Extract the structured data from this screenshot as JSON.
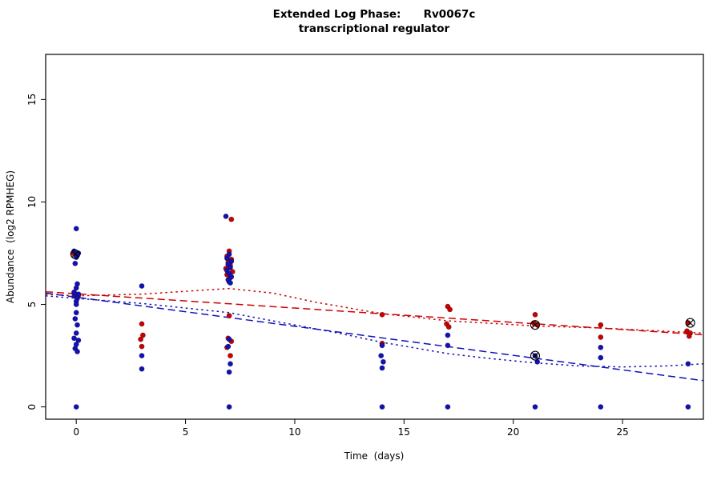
{
  "title": {
    "line1": "Extended Log Phase:      Rv0067c",
    "line2": "transcriptional regulator"
  },
  "axes": {
    "xlabel": "Time  (days)",
    "ylabel": "Abundance  (log2 RPMHEG)"
  },
  "chart_data": {
    "type": "scatter",
    "title": "Extended Log Phase: Rv0067c",
    "subtitle": "transcriptional regulator",
    "xlabel": "Time (days)",
    "ylabel": "Abundance (log2 RPMHEG)",
    "xlim": [
      -1.4,
      28.7
    ],
    "ylim": [
      -0.6,
      17.2
    ],
    "xticks": [
      0,
      5,
      10,
      15,
      20,
      25
    ],
    "yticks": [
      0,
      5,
      10,
      15
    ],
    "grid": false,
    "legend": "none",
    "colors": {
      "red": "#cc0000",
      "blue": "#1111bb",
      "flag": "#000000"
    },
    "series": [
      {
        "name": "red-points",
        "type": "points",
        "color": "red",
        "points": [
          [
            -0.15,
            7.5
          ],
          [
            0.05,
            7.4
          ],
          [
            -0.1,
            5.55
          ],
          [
            0.1,
            5.45
          ],
          [
            3.0,
            4.05
          ],
          [
            3.05,
            3.5
          ],
          [
            2.95,
            3.3
          ],
          [
            3.0,
            2.95
          ],
          [
            7.1,
            9.15
          ],
          [
            7.0,
            7.6
          ],
          [
            6.9,
            7.35
          ],
          [
            7.1,
            7.2
          ],
          [
            6.95,
            7.05
          ],
          [
            7.05,
            6.9
          ],
          [
            6.85,
            6.75
          ],
          [
            7.15,
            6.6
          ],
          [
            6.9,
            6.45
          ],
          [
            7.05,
            6.3
          ],
          [
            7.0,
            6.1
          ],
          [
            7.0,
            4.45
          ],
          [
            6.95,
            3.35
          ],
          [
            7.1,
            3.2
          ],
          [
            6.9,
            2.9
          ],
          [
            7.05,
            2.5
          ],
          [
            14.0,
            4.5
          ],
          [
            14.0,
            3.1
          ],
          [
            17.0,
            4.9
          ],
          [
            17.1,
            4.75
          ],
          [
            16.95,
            4.05
          ],
          [
            17.05,
            3.9
          ],
          [
            21.0,
            4.5
          ],
          [
            20.95,
            4.1
          ],
          [
            21.1,
            4.0
          ],
          [
            24.0,
            4.0
          ],
          [
            24.0,
            3.4
          ],
          [
            28.0,
            4.1
          ],
          [
            27.95,
            3.7
          ],
          [
            28.1,
            3.6
          ],
          [
            28.05,
            3.45
          ]
        ]
      },
      {
        "name": "blue-points",
        "type": "points",
        "color": "blue",
        "points": [
          [
            0.0,
            8.7
          ],
          [
            -0.1,
            7.6
          ],
          [
            0.1,
            7.5
          ],
          [
            0.0,
            7.3
          ],
          [
            -0.05,
            7.0
          ],
          [
            0.05,
            6.0
          ],
          [
            0.0,
            5.8
          ],
          [
            -0.1,
            5.6
          ],
          [
            0.1,
            5.5
          ],
          [
            -0.05,
            5.4
          ],
          [
            0.05,
            5.3
          ],
          [
            0.0,
            5.15
          ],
          [
            0.0,
            5.0
          ],
          [
            0.0,
            4.6
          ],
          [
            -0.05,
            4.3
          ],
          [
            0.05,
            4.0
          ],
          [
            0.0,
            3.6
          ],
          [
            -0.1,
            3.35
          ],
          [
            0.1,
            3.25
          ],
          [
            0.0,
            3.05
          ],
          [
            -0.05,
            2.85
          ],
          [
            0.05,
            2.7
          ],
          [
            0.0,
            0.0
          ],
          [
            3.0,
            5.9
          ],
          [
            3.0,
            2.5
          ],
          [
            3.0,
            1.85
          ],
          [
            6.85,
            9.3
          ],
          [
            7.0,
            7.45
          ],
          [
            6.9,
            7.25
          ],
          [
            7.1,
            7.1
          ],
          [
            6.95,
            6.95
          ],
          [
            7.05,
            6.8
          ],
          [
            6.9,
            6.65
          ],
          [
            7.0,
            6.5
          ],
          [
            7.1,
            6.35
          ],
          [
            6.95,
            6.2
          ],
          [
            7.05,
            6.05
          ],
          [
            7.0,
            3.3
          ],
          [
            6.95,
            2.95
          ],
          [
            7.05,
            2.1
          ],
          [
            7.0,
            1.7
          ],
          [
            7.0,
            0.0
          ],
          [
            14.0,
            3.0
          ],
          [
            13.95,
            2.5
          ],
          [
            14.05,
            2.2
          ],
          [
            14.0,
            1.9
          ],
          [
            14.0,
            0.0
          ],
          [
            17.0,
            3.5
          ],
          [
            17.0,
            3.0
          ],
          [
            17.0,
            0.0
          ],
          [
            21.0,
            2.5
          ],
          [
            21.1,
            2.2
          ],
          [
            21.0,
            0.0
          ],
          [
            24.0,
            2.9
          ],
          [
            24.0,
            2.4
          ],
          [
            24.0,
            0.0
          ],
          [
            28.0,
            2.1
          ],
          [
            28.0,
            0.0
          ]
        ]
      },
      {
        "name": "red-dashed-fit",
        "type": "line",
        "color": "red",
        "dash": "longdash",
        "points": [
          [
            -1.4,
            5.62
          ],
          [
            28.7,
            3.52
          ]
        ]
      },
      {
        "name": "red-dotted-fit",
        "type": "line",
        "color": "red",
        "dash": "dotted",
        "points": [
          [
            -1.4,
            5.5
          ],
          [
            0,
            5.42
          ],
          [
            3,
            5.5
          ],
          [
            7,
            5.78
          ],
          [
            9,
            5.55
          ],
          [
            11,
            5.1
          ],
          [
            14,
            4.55
          ],
          [
            17,
            4.2
          ],
          [
            21,
            3.95
          ],
          [
            24,
            3.85
          ],
          [
            28.7,
            3.6
          ]
        ]
      },
      {
        "name": "blue-dashed-fit",
        "type": "line",
        "color": "blue",
        "dash": "longdash",
        "points": [
          [
            -1.4,
            5.55
          ],
          [
            28.7,
            1.28
          ]
        ]
      },
      {
        "name": "blue-dotted-fit",
        "type": "line",
        "color": "blue",
        "dash": "dotted",
        "points": [
          [
            -1.4,
            5.42
          ],
          [
            0,
            5.3
          ],
          [
            3,
            5.05
          ],
          [
            7,
            4.6
          ],
          [
            10,
            4.0
          ],
          [
            12,
            3.6
          ],
          [
            14,
            3.15
          ],
          [
            17,
            2.6
          ],
          [
            19,
            2.35
          ],
          [
            21,
            2.15
          ],
          [
            23,
            2.0
          ],
          [
            25,
            1.95
          ],
          [
            27,
            2.0
          ],
          [
            28.7,
            2.1
          ]
        ]
      }
    ],
    "flagged_points": [
      [
        -0.05,
        7.45
      ],
      [
        21.0,
        4.0
      ],
      [
        21.0,
        2.5
      ],
      [
        28.1,
        4.1
      ]
    ]
  }
}
